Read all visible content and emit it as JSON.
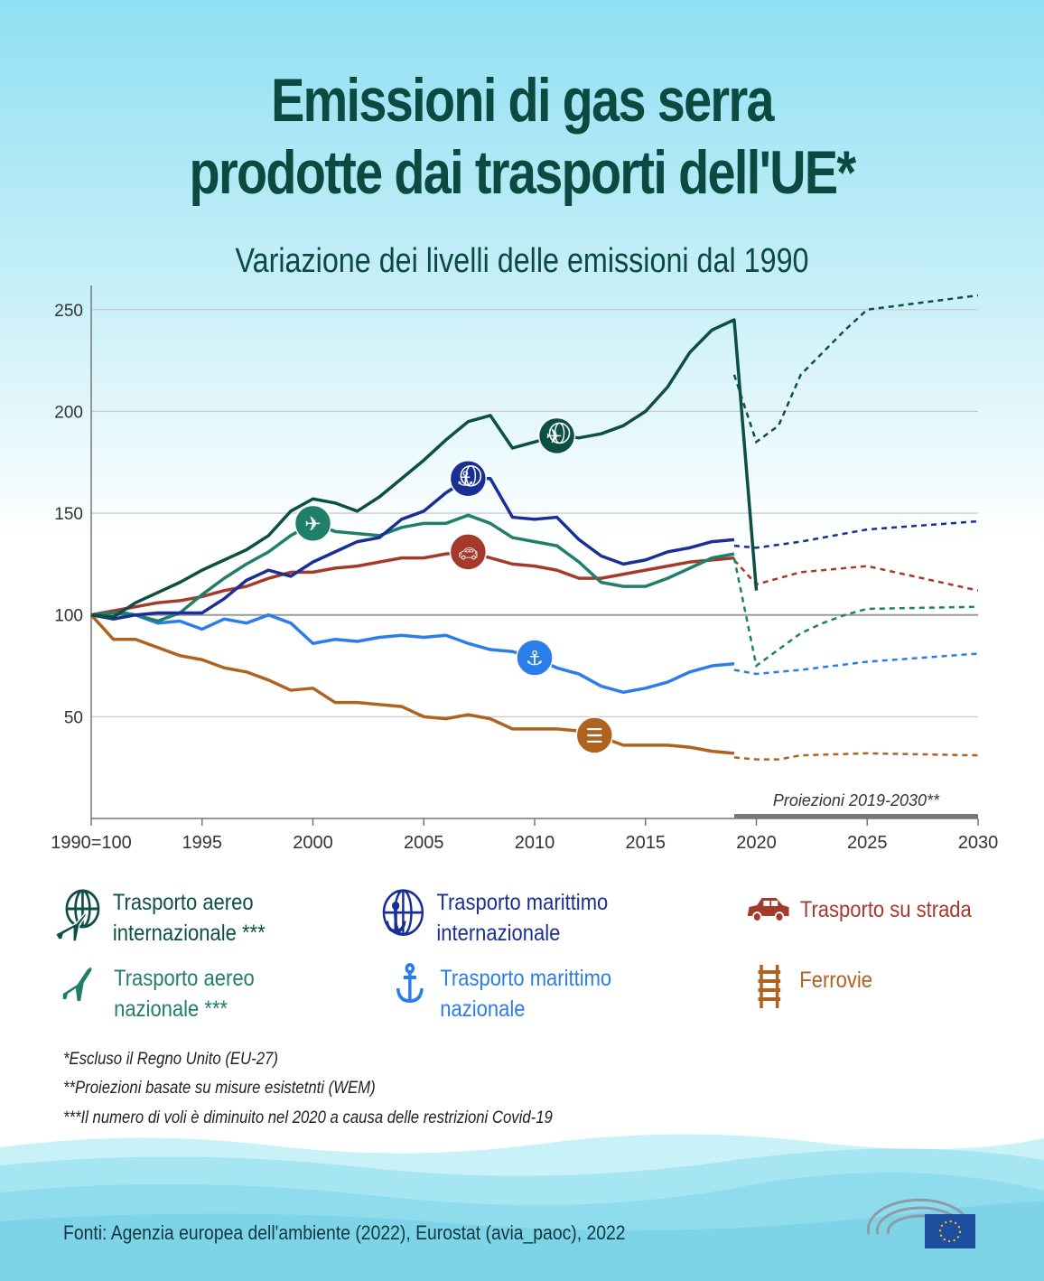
{
  "title_line1": "Emissioni di gas serra",
  "title_line2": "prodotte dai trasporti dell'UE*",
  "subtitle": "Variazione dei livelli delle emissioni dal 1990",
  "chart_data": {
    "type": "line",
    "title": "Emissioni di gas serra prodotte dai trasporti dell'UE*",
    "subtitle": "Variazione dei livelli delle emissioni dal 1990",
    "xlim": [
      1990,
      2030
    ],
    "ylim": [
      0,
      260
    ],
    "yticks": [
      50,
      100,
      150,
      200,
      250
    ],
    "xtick_labels": [
      "1990=100",
      "1995",
      "2000",
      "2005",
      "2010",
      "2015",
      "2020",
      "2025",
      "2030"
    ],
    "xticks": [
      1990,
      1995,
      2000,
      2005,
      2010,
      2015,
      2020,
      2025,
      2030
    ],
    "grid": true,
    "projection_label": "Proiezioni 2019-2030**",
    "projection_range": [
      2019,
      2030
    ],
    "series": [
      {
        "name": "Trasporto aereo internazionale ***",
        "color": "#0d4f45",
        "icon": "globe-plane",
        "icon_year": 2011,
        "x": [
          1990,
          1991,
          1992,
          1993,
          1994,
          1995,
          1996,
          1997,
          1998,
          1999,
          2000,
          2001,
          2002,
          2003,
          2004,
          2005,
          2006,
          2007,
          2008,
          2009,
          2010,
          2011,
          2012,
          2013,
          2014,
          2015,
          2016,
          2017,
          2018,
          2019,
          2020
        ],
        "values": [
          100,
          99,
          106,
          111,
          116,
          122,
          127,
          132,
          139,
          151,
          157,
          155,
          151,
          158,
          167,
          176,
          186,
          195,
          198,
          182,
          185,
          188,
          187,
          189,
          193,
          200,
          212,
          229,
          240,
          245,
          112
        ],
        "projection_x": [
          2019,
          2020,
          2021,
          2022,
          2023,
          2024,
          2025,
          2030
        ],
        "projection": [
          218,
          185,
          193,
          218,
          229,
          240,
          250,
          257
        ]
      },
      {
        "name": "Trasporto marittimo internazionale",
        "color": "#1a2f96",
        "icon": "globe-anchor",
        "icon_year": 2007,
        "x": [
          1990,
          1991,
          1992,
          1993,
          1994,
          1995,
          1996,
          1997,
          1998,
          1999,
          2000,
          2001,
          2002,
          2003,
          2004,
          2005,
          2006,
          2007,
          2008,
          2009,
          2010,
          2011,
          2012,
          2013,
          2014,
          2015,
          2016,
          2017,
          2018,
          2019
        ],
        "values": [
          100,
          98,
          100,
          101,
          101,
          101,
          108,
          117,
          122,
          119,
          126,
          131,
          136,
          138,
          147,
          151,
          160,
          167,
          167,
          148,
          147,
          148,
          137,
          129,
          125,
          127,
          131,
          133,
          136,
          137
        ],
        "projection_x": [
          2019,
          2020,
          2022,
          2025,
          2030
        ],
        "projection": [
          134,
          133,
          136,
          142,
          146
        ]
      },
      {
        "name": "Trasporto su strada",
        "color": "#a53a2c",
        "icon": "car",
        "icon_year": 2007,
        "x": [
          1990,
          1991,
          1992,
          1993,
          1994,
          1995,
          1996,
          1997,
          1998,
          1999,
          2000,
          2001,
          2002,
          2003,
          2004,
          2005,
          2006,
          2007,
          2008,
          2009,
          2010,
          2011,
          2012,
          2013,
          2014,
          2015,
          2016,
          2017,
          2018,
          2019
        ],
        "values": [
          100,
          102,
          104,
          106,
          107,
          109,
          112,
          114,
          118,
          121,
          121,
          123,
          124,
          126,
          128,
          128,
          130,
          131,
          128,
          125,
          124,
          122,
          118,
          118,
          120,
          122,
          124,
          126,
          127,
          128
        ],
        "projection_x": [
          2019,
          2020,
          2022,
          2025,
          2030
        ],
        "projection": [
          127,
          115,
          121,
          124,
          112
        ]
      },
      {
        "name": "Trasporto aereo nazionale ***",
        "color": "#1f7f6a",
        "icon": "plane",
        "icon_year": 2000,
        "x": [
          1990,
          1991,
          1992,
          1993,
          1994,
          1995,
          1996,
          1997,
          1998,
          1999,
          2000,
          2001,
          2002,
          2003,
          2004,
          2005,
          2006,
          2007,
          2008,
          2009,
          2010,
          2011,
          2012,
          2013,
          2014,
          2015,
          2016,
          2017,
          2018,
          2019
        ],
        "values": [
          100,
          101,
          100,
          97,
          101,
          110,
          118,
          125,
          131,
          139,
          145,
          141,
          140,
          139,
          143,
          145,
          145,
          149,
          145,
          138,
          136,
          134,
          126,
          116,
          114,
          114,
          118,
          123,
          128,
          130
        ],
        "projection_x": [
          2019,
          2020,
          2021,
          2022,
          2023,
          2024,
          2025,
          2030
        ],
        "projection": [
          128,
          75,
          83,
          91,
          96,
          100,
          103,
          104
        ]
      },
      {
        "name": "Trasporto marittimo nazionale",
        "color": "#2b7de9",
        "icon": "anchor",
        "icon_year": 2010,
        "x": [
          1990,
          1991,
          1992,
          1993,
          1994,
          1995,
          1996,
          1997,
          1998,
          1999,
          2000,
          2001,
          2002,
          2003,
          2004,
          2005,
          2006,
          2007,
          2008,
          2009,
          2010,
          2011,
          2012,
          2013,
          2014,
          2015,
          2016,
          2017,
          2018,
          2019
        ],
        "values": [
          100,
          102,
          100,
          96,
          97,
          93,
          98,
          96,
          100,
          96,
          86,
          88,
          87,
          89,
          90,
          89,
          90,
          86,
          83,
          82,
          79,
          74,
          71,
          65,
          62,
          64,
          67,
          72,
          75,
          76
        ],
        "projection_x": [
          2019,
          2020,
          2022,
          2025,
          2030
        ],
        "projection": [
          73,
          71,
          73,
          77,
          81
        ]
      },
      {
        "name": "Ferrovie",
        "color": "#b0621f",
        "icon": "rail",
        "icon_year": 2012.7,
        "x": [
          1990,
          1991,
          1992,
          1993,
          1994,
          1995,
          1996,
          1997,
          1998,
          1999,
          2000,
          2001,
          2002,
          2003,
          2004,
          2005,
          2006,
          2007,
          2008,
          2009,
          2010,
          2011,
          2012,
          2013,
          2014,
          2015,
          2016,
          2017,
          2018,
          2019
        ],
        "values": [
          100,
          88,
          88,
          84,
          80,
          78,
          74,
          72,
          68,
          63,
          64,
          57,
          57,
          56,
          55,
          50,
          49,
          51,
          49,
          44,
          44,
          44,
          43,
          40,
          36,
          36,
          36,
          35,
          33,
          32
        ],
        "projection_x": [
          2019,
          2020,
          2021,
          2022,
          2025,
          2030
        ],
        "projection": [
          30,
          29,
          29,
          31,
          32,
          31
        ]
      }
    ]
  },
  "legend": [
    {
      "line1": "Trasporto aereo",
      "line2": "internazionale ***",
      "color": "#0d4f45"
    },
    {
      "line1": "Trasporto marittimo",
      "line2": "internazionale",
      "color": "#1a2f96"
    },
    {
      "line1": "Trasporto su strada",
      "line2": "",
      "color": "#a53a2c"
    },
    {
      "line1": "Trasporto aereo",
      "line2": "nazionale ***",
      "color": "#1f7f6a"
    },
    {
      "line1": "Trasporto marittimo",
      "line2": "nazionale",
      "color": "#2b7de9"
    },
    {
      "line1": "Ferrovie",
      "line2": "",
      "color": "#b0621f"
    }
  ],
  "notes": [
    "*Escluso il Regno Unito (EU-27)",
    "**Proiezioni basate su misure esistetnti (WEM)",
    "***Il numero di voli è diminuito nel 2020 a causa delle restrizioni Covid-19"
  ],
  "source": "Fonti: Agenzia europea dell'ambiente (2022), Eurostat (avia_paoc), 2022"
}
